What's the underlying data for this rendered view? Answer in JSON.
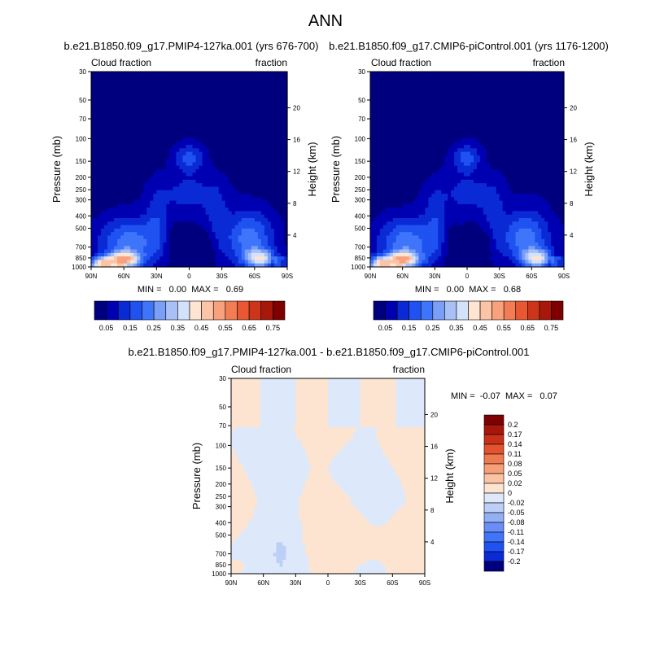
{
  "main_title": "ANN",
  "colors": {
    "seq": [
      "#00007f",
      "#0000b3",
      "#0a2ad6",
      "#1f52f0",
      "#3f75fa",
      "#7b9ef7",
      "#a8c0f5",
      "#d2e2fb",
      "#ffe4d2",
      "#fcc4a6",
      "#f8a17d",
      "#f37c55",
      "#e95833",
      "#cc3519",
      "#a8180a",
      "#7f0000"
    ],
    "diff": [
      "#00007f",
      "#0a2ad6",
      "#1f52f0",
      "#3f75fa",
      "#6a8ef7",
      "#93b0f5",
      "#bcd0f7",
      "#dde9fb",
      "#fde4d0",
      "#fbc3a4",
      "#f79f79",
      "#f07a50",
      "#e4532d",
      "#c93018",
      "#a8150a",
      "#7f0000"
    ]
  },
  "panels": [
    {
      "id": "left",
      "title": "b.e21.B1850.f09_g17.PMIP4-127ka.001 (yrs 676-700)",
      "left_label": "Cloud fraction",
      "right_label": "fraction",
      "ylabel": "Pressure (mb)",
      "y2label": "Height (km)",
      "stats": "MIN =   0.00  MAX =   0.69",
      "variant": 0
    },
    {
      "id": "right",
      "title": "b.e21.B1850.f09_g17.CMIP6-piControl.001 (yrs 1176-1200)",
      "left_label": "Cloud fraction",
      "right_label": "fraction",
      "ylabel": "Pressure (mb)",
      "y2label": "Height (km)",
      "stats": "MIN =   0.00  MAX =   0.68",
      "variant": 1
    },
    {
      "id": "diff",
      "title": "b.e21.B1850.f09_g17.PMIP4-127ka.001 - b.e21.B1850.f09_g17.CMIP6-piControl.001",
      "left_label": "Cloud fraction",
      "right_label": "fraction",
      "ylabel": "Pressure (mb)",
      "y2label": "Height (km)",
      "stats": "MIN =  -0.07  MAX =   0.07",
      "variant": 2
    }
  ],
  "chart_data": {
    "type": "heatmap",
    "x_ticks": [
      "90N",
      "60N",
      "30N",
      "0",
      "30S",
      "60S",
      "90S"
    ],
    "x_range": [
      90,
      -90
    ],
    "y_ticks_pressure": [
      30,
      50,
      70,
      100,
      150,
      200,
      250,
      300,
      400,
      500,
      700,
      850,
      1000
    ],
    "y_ticks_pressure_labels": [
      "30",
      "50",
      "70",
      "100",
      "150",
      "200",
      "250",
      "300",
      "400",
      "500",
      "700",
      "850",
      "1000"
    ],
    "y_range_mb": [
      1000,
      30
    ],
    "y2_ticks_km": [
      20,
      16,
      12,
      8,
      4
    ],
    "y2_ticks_labels": [
      "20",
      "16",
      "12",
      "8",
      "4"
    ],
    "colorbar_levels": [
      "0.05",
      "0.15",
      "0.25",
      "0.35",
      "0.45",
      "0.55",
      "0.65",
      "0.75"
    ],
    "diff_colorbar_levels": [
      "0.2",
      "0.17",
      "0.14",
      "0.11",
      "0.08",
      "0.05",
      "0.02",
      "0",
      "-0.02",
      "-0.05",
      "-0.08",
      "-0.11",
      "-0.14",
      "-0.17",
      "-0.2"
    ],
    "panel_stats": [
      {
        "min": 0.0,
        "max": 0.69
      },
      {
        "min": 0.0,
        "max": 0.68
      },
      {
        "min": -0.07,
        "max": 0.07
      }
    ]
  }
}
